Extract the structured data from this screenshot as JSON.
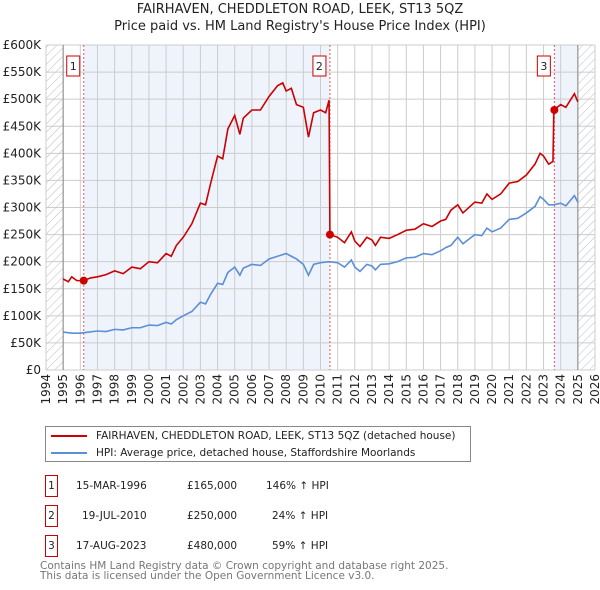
{
  "chart_data": {
    "type": "line",
    "title": "FAIRHAVEN, CHEDDLETON ROAD, LEEK, ST13 5QZ",
    "subtitle": "Price paid vs. HM Land Registry's House Price Index (HPI)",
    "xlim": [
      1994,
      2026
    ],
    "ylim": [
      0,
      600000
    ],
    "x_ticks": [
      "1994",
      "1995",
      "1996",
      "1997",
      "1998",
      "1999",
      "2000",
      "2001",
      "2002",
      "2003",
      "2004",
      "2005",
      "2006",
      "2007",
      "2008",
      "2009",
      "2010",
      "2011",
      "2012",
      "2013",
      "2014",
      "2015",
      "2016",
      "2017",
      "2018",
      "2019",
      "2020",
      "2021",
      "2022",
      "2023",
      "2024",
      "2025",
      "2026"
    ],
    "y_ticks": [
      {
        "v": 0,
        "l": "£0"
      },
      {
        "v": 50000,
        "l": "£50K"
      },
      {
        "v": 100000,
        "l": "£100K"
      },
      {
        "v": 150000,
        "l": "£150K"
      },
      {
        "v": 200000,
        "l": "£200K"
      },
      {
        "v": 250000,
        "l": "£250K"
      },
      {
        "v": 300000,
        "l": "£300K"
      },
      {
        "v": 350000,
        "l": "£350K"
      },
      {
        "v": 400000,
        "l": "£400K"
      },
      {
        "v": 450000,
        "l": "£450K"
      },
      {
        "v": 500000,
        "l": "£500K"
      },
      {
        "v": 550000,
        "l": "£550K"
      },
      {
        "v": 600000,
        "l": "£600K"
      }
    ],
    "grid": true,
    "series": [
      {
        "name": "FAIRHAVEN, CHEDDLETON ROAD, LEEK, ST13 5QZ (detached house)",
        "color": "#cc0000",
        "x": [
          1995,
          1995.3,
          1995.5,
          1995.8,
          1996.2,
          1996.6,
          1997,
          1997.5,
          1998,
          1998.5,
          1999,
          1999.5,
          2000,
          2000.5,
          2001,
          2001.3,
          2001.6,
          2002,
          2002.5,
          2003,
          2003.3,
          2003.6,
          2004,
          2004.3,
          2004.6,
          2005,
          2005.3,
          2005.5,
          2006,
          2006.5,
          2007,
          2007.5,
          2007.8,
          2008,
          2008.3,
          2008.6,
          2009,
          2009.3,
          2009.6,
          2010,
          2010.3,
          2010.5,
          2010.55,
          2011,
          2011.4,
          2011.8,
          2012,
          2012.3,
          2012.7,
          2013,
          2013.2,
          2013.5,
          2014,
          2014.5,
          2015,
          2015.5,
          2016,
          2016.5,
          2017,
          2017.3,
          2017.6,
          2018,
          2018.3,
          2019,
          2019.4,
          2019.7,
          2020,
          2020.5,
          2021,
          2021.5,
          2022,
          2022.5,
          2022.8,
          2023,
          2023.3,
          2023.55,
          2023.6,
          2024,
          2024.3,
          2024.8,
          2025
        ],
        "y": [
          168,
          163,
          172,
          165,
          165,
          170,
          172,
          176,
          183,
          178,
          190,
          187,
          200,
          198,
          215,
          210,
          230,
          245,
          270,
          308,
          305,
          345,
          395,
          390,
          445,
          470,
          435,
          465,
          480,
          480,
          505,
          525,
          530,
          515,
          520,
          490,
          485,
          430,
          475,
          480,
          475,
          498,
          250,
          245,
          235,
          255,
          238,
          228,
          245,
          240,
          230,
          245,
          243,
          250,
          258,
          260,
          270,
          265,
          275,
          278,
          295,
          305,
          290,
          310,
          308,
          325,
          315,
          325,
          345,
          348,
          360,
          380,
          400,
          395,
          380,
          385,
          480,
          490,
          485,
          510,
          495
        ]
      },
      {
        "name": "HPI: Average price, detached house, Staffordshire Moorlands",
        "color": "#5b8fd6",
        "x": [
          1995,
          1995.5,
          1996,
          1996.5,
          1997,
          1997.5,
          1998,
          1998.5,
          1999,
          1999.5,
          2000,
          2000.5,
          2001,
          2001.3,
          2001.6,
          2002,
          2002.5,
          2003,
          2003.3,
          2003.6,
          2004,
          2004.3,
          2004.6,
          2005,
          2005.3,
          2005.5,
          2006,
          2006.5,
          2007,
          2007.5,
          2008,
          2008.3,
          2008.6,
          2009,
          2009.3,
          2009.6,
          2010,
          2010.5,
          2011,
          2011.4,
          2011.8,
          2012,
          2012.3,
          2012.7,
          2013,
          2013.2,
          2013.5,
          2014,
          2014.5,
          2015,
          2015.5,
          2016,
          2016.5,
          2017,
          2017.3,
          2017.6,
          2018,
          2018.3,
          2019,
          2019.4,
          2019.7,
          2020,
          2020.5,
          2021,
          2021.5,
          2022,
          2022.5,
          2022.8,
          2023,
          2023.3,
          2023.6,
          2024,
          2024.3,
          2024.8,
          2025
        ],
        "y": [
          70,
          68,
          68,
          70,
          72,
          71,
          75,
          74,
          78,
          78,
          83,
          82,
          88,
          85,
          93,
          100,
          108,
          125,
          122,
          140,
          160,
          158,
          180,
          190,
          175,
          188,
          195,
          193,
          205,
          210,
          215,
          210,
          205,
          195,
          175,
          195,
          198,
          200,
          198,
          190,
          203,
          190,
          182,
          195,
          192,
          185,
          195,
          196,
          200,
          207,
          208,
          215,
          213,
          220,
          226,
          230,
          245,
          233,
          250,
          248,
          262,
          255,
          262,
          278,
          280,
          290,
          302,
          320,
          315,
          305,
          305,
          308,
          303,
          322,
          310
        ]
      }
    ],
    "sales": [
      {
        "n": "1",
        "x": 1996.2,
        "y": 165000,
        "date": "15-MAR-1996",
        "price": "£165,000",
        "hpi": "146% ↑ HPI"
      },
      {
        "n": "2",
        "x": 2010.55,
        "y": 250000,
        "date": "19-JUL-2010",
        "price": "£250,000",
        "hpi": "24% ↑ HPI"
      },
      {
        "n": "3",
        "x": 2023.63,
        "y": 480000,
        "date": "17-AUG-2023",
        "price": "£480,000",
        "hpi": "59% ↑ HPI"
      }
    ],
    "legend": [
      "FAIRHAVEN, CHEDDLETON ROAD, LEEK, ST13 5QZ (detached house)",
      "HPI: Average price, detached house, Staffordshire Moorlands"
    ],
    "legend_placement": "below"
  },
  "footer": [
    "Contains HM Land Registry data © Crown copyright and database right 2025.",
    "This data is licensed under the Open Government Licence v3.0."
  ]
}
